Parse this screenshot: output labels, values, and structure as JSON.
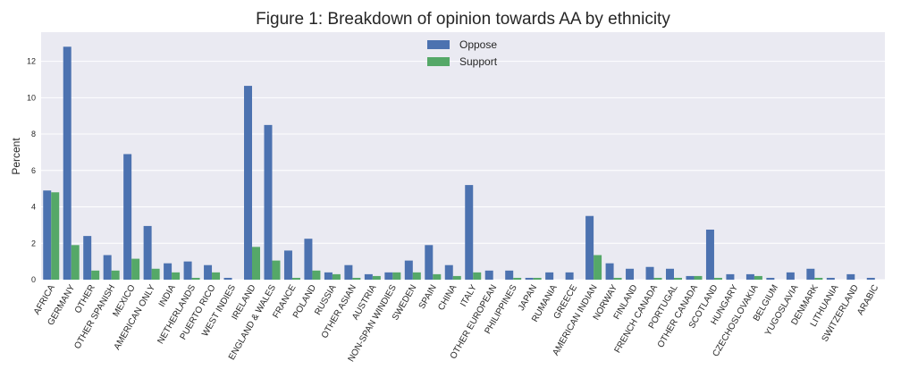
{
  "chart_data": {
    "type": "bar",
    "title": "Figure 1: Breakdown of opinion towards AA by ethnicity",
    "xlabel": "",
    "ylabel": "Percent",
    "ylim": [
      0,
      13.6
    ],
    "yticks": [
      0,
      2,
      4,
      6,
      8,
      10,
      12
    ],
    "grid": true,
    "legend_position": "top-center",
    "categories": [
      "AFRICA",
      "GERMANY",
      "OTHER",
      "OTHER SPANISH",
      "MEXICO",
      "AMERICAN ONLY",
      "INDIA",
      "NETHERLANDS",
      "PUERTO RICO",
      "WEST INDIES",
      "IRELAND",
      "ENGLAND & WALES",
      "FRANCE",
      "POLAND",
      "RUSSIA",
      "OTHER ASIAN",
      "AUSTRIA",
      "NON-SPAN WINDIES",
      "SWEDEN",
      "SPAIN",
      "CHINA",
      "ITALY",
      "OTHER EUROPEAN",
      "PHILIPPINES",
      "JAPAN",
      "RUMANIA",
      "GREECE",
      "AMERICAN INDIAN",
      "NORWAY",
      "FINLAND",
      "FRENCH CANADA",
      "PORTUGAL",
      "OTHER CANADA",
      "SCOTLAND",
      "HUNGARY",
      "CZECHOSLOVAKIA",
      "BELGIUM",
      "YUGOSLAVIA",
      "DENMARK",
      "LITHUANIA",
      "SWITZERLAND",
      "ARABIC"
    ],
    "series": [
      {
        "name": "Oppose",
        "color": "#4c72b0",
        "values": [
          4.9,
          12.8,
          2.4,
          1.35,
          6.9,
          2.95,
          0.9,
          1.0,
          0.8,
          0.1,
          10.65,
          8.5,
          1.6,
          2.25,
          0.4,
          0.8,
          0.3,
          0.4,
          1.05,
          1.9,
          0.8,
          5.2,
          0.5,
          0.5,
          0.1,
          0.4,
          0.4,
          3.5,
          0.9,
          0.6,
          0.7,
          0.6,
          0.2,
          2.75,
          0.3,
          0.3,
          0.1,
          0.4,
          0.6,
          0.1,
          0.3,
          0.1
        ]
      },
      {
        "name": "Support",
        "color": "#55a868",
        "values": [
          4.8,
          1.9,
          0.5,
          0.5,
          1.15,
          0.6,
          0.4,
          0.1,
          0.4,
          0.0,
          1.8,
          1.05,
          0.1,
          0.5,
          0.3,
          0.1,
          0.2,
          0.4,
          0.4,
          0.3,
          0.2,
          0.4,
          0.0,
          0.1,
          0.1,
          0.0,
          0.0,
          1.35,
          0.1,
          0.0,
          0.1,
          0.1,
          0.2,
          0.1,
          0.0,
          0.2,
          0.0,
          0.0,
          0.1,
          0.0,
          0.0,
          0.0
        ]
      }
    ]
  }
}
